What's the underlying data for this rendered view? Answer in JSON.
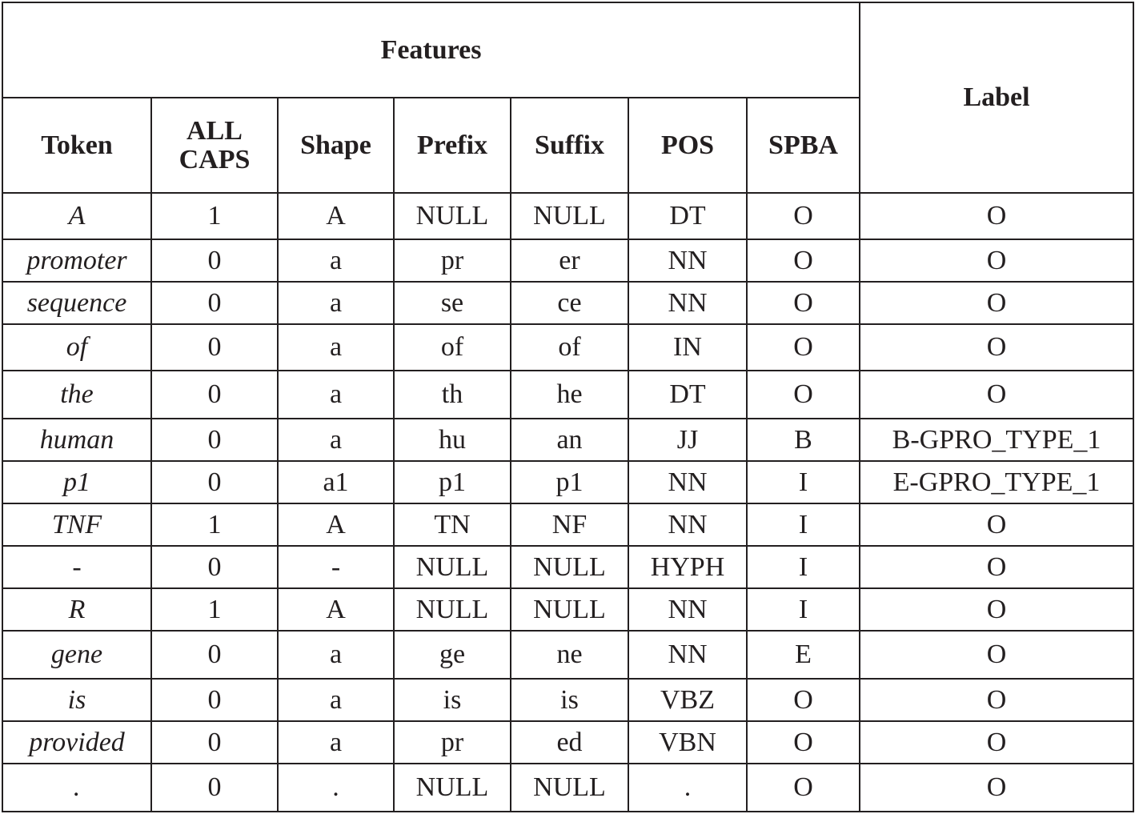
{
  "header": {
    "features": "Features",
    "label": "Label",
    "columns": [
      "Token",
      "ALL CAPS",
      "Shape",
      "Prefix",
      "Suffix",
      "POS",
      "SPBA"
    ],
    "all_caps_line1": "ALL",
    "all_caps_line2": "CAPS"
  },
  "rows": [
    {
      "token": "A",
      "caps": "1",
      "shape": "A",
      "prefix": "NULL",
      "suffix": "NULL",
      "pos": "DT",
      "spba": "O",
      "label": "O"
    },
    {
      "token": "promoter",
      "caps": "0",
      "shape": "a",
      "prefix": "pr",
      "suffix": "er",
      "pos": "NN",
      "spba": "O",
      "label": "O"
    },
    {
      "token": "sequence",
      "caps": "0",
      "shape": "a",
      "prefix": "se",
      "suffix": "ce",
      "pos": "NN",
      "spba": "O",
      "label": "O"
    },
    {
      "token": "of",
      "caps": "0",
      "shape": "a",
      "prefix": "of",
      "suffix": "of",
      "pos": "IN",
      "spba": "O",
      "label": "O"
    },
    {
      "token": "the",
      "caps": "0",
      "shape": "a",
      "prefix": "th",
      "suffix": "he",
      "pos": "DT",
      "spba": "O",
      "label": "O"
    },
    {
      "token": "human",
      "caps": "0",
      "shape": "a",
      "prefix": "hu",
      "suffix": "an",
      "pos": "JJ",
      "spba": "B",
      "label": "B-GPRO_TYPE_1"
    },
    {
      "token": "p1",
      "caps": "0",
      "shape": "a1",
      "prefix": "p1",
      "suffix": "p1",
      "pos": "NN",
      "spba": "I",
      "label": "E-GPRO_TYPE_1"
    },
    {
      "token": "TNF",
      "caps": "1",
      "shape": "A",
      "prefix": "TN",
      "suffix": "NF",
      "pos": "NN",
      "spba": "I",
      "label": "O"
    },
    {
      "token": "-",
      "caps": "0",
      "shape": "-",
      "prefix": "NULL",
      "suffix": "NULL",
      "pos": "HYPH",
      "spba": "I",
      "label": "O"
    },
    {
      "token": "R",
      "caps": "1",
      "shape": "A",
      "prefix": "NULL",
      "suffix": "NULL",
      "pos": "NN",
      "spba": "I",
      "label": "O"
    },
    {
      "token": "gene",
      "caps": "0",
      "shape": "a",
      "prefix": "ge",
      "suffix": "ne",
      "pos": "NN",
      "spba": "E",
      "label": "O"
    },
    {
      "token": "is",
      "caps": "0",
      "shape": "a",
      "prefix": "is",
      "suffix": "is",
      "pos": "VBZ",
      "spba": "O",
      "label": "O"
    },
    {
      "token": "provided",
      "caps": "0",
      "shape": "a",
      "prefix": "pr",
      "suffix": "ed",
      "pos": "VBN",
      "spba": "O",
      "label": "O"
    },
    {
      "token": ".",
      "caps": "0",
      "shape": ".",
      "prefix": "NULL",
      "suffix": "NULL",
      "pos": ".",
      "spba": "O",
      "label": "O"
    }
  ]
}
